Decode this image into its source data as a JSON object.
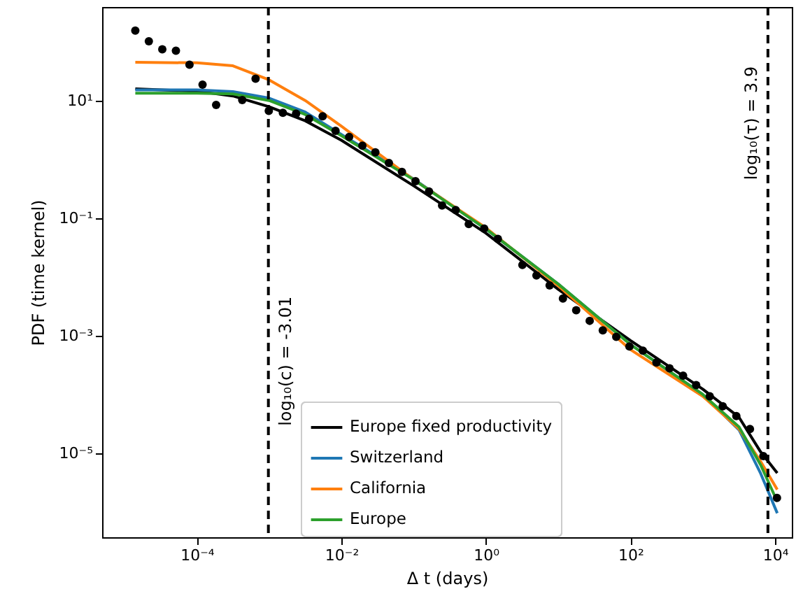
{
  "chart_data": {
    "type": "line",
    "xlabel": "Δ t (days)",
    "ylabel": "PDF (time kernel)",
    "log": "xy",
    "xlim": [
      4.9e-06,
      17000
    ],
    "ylim": [
      3.7e-07,
      400
    ],
    "xticks": [
      {
        "value": 0.0001,
        "label": "10⁻⁴"
      },
      {
        "value": 0.01,
        "label": "10⁻²"
      },
      {
        "value": 1,
        "label": "10⁰"
      },
      {
        "value": 100,
        "label": "10²"
      },
      {
        "value": 10000,
        "label": "10⁴"
      }
    ],
    "yticks": [
      {
        "value": 1e-05,
        "label": "10⁻⁵"
      },
      {
        "value": 0.001,
        "label": "10⁻³"
      },
      {
        "value": 0.1,
        "label": "10⁻¹"
      },
      {
        "value": 10,
        "label": "10¹"
      }
    ],
    "grid": false,
    "legend": "bottom",
    "ref_lines": [
      {
        "axis": "x",
        "value": 0.000977237,
        "color": "#000000",
        "line_style": "dashed"
      },
      {
        "axis": "x",
        "value": 7943.28,
        "color": "#000000",
        "line_style": "dashed"
      }
    ],
    "annotations": [
      {
        "text": "log₁₀(c) = -3.01",
        "x": 0.000977237,
        "y": 0.00037
      },
      {
        "text": "log₁₀(τ) = 3.9",
        "x": 7943.28,
        "y": 4.2
      }
    ],
    "series": [
      {
        "type": "scatter",
        "color": "#000000",
        "marker": "circle",
        "x": [
          1.41e-05,
          2.17e-05,
          3.33e-05,
          5.14e-05,
          7.92e-05,
          0.00012,
          0.000185,
          0.000425,
          0.00065,
          0.00099,
          0.00155,
          0.00236,
          0.00357,
          0.0055,
          0.0083,
          0.0128,
          0.0195,
          0.0295,
          0.0454,
          0.0688,
          0.106,
          0.163,
          0.247,
          0.381,
          0.578,
          0.944,
          1.46,
          3.19,
          4.99,
          7.59,
          11.6,
          17.7,
          27.2,
          41.3,
          63.4,
          96.4,
          148,
          228,
          346,
          533,
          808,
          1245,
          1884,
          2904,
          4480,
          6870,
          10600
        ],
        "values": [
          158,
          104,
          76,
          72,
          41.6,
          19.0,
          8.6,
          10.4,
          24,
          6.8,
          6.3,
          6.1,
          5.0,
          5.5,
          3.1,
          2.44,
          1.73,
          1.34,
          0.88,
          0.62,
          0.43,
          0.288,
          0.166,
          0.139,
          0.08,
          0.067,
          0.0447,
          0.0161,
          0.0107,
          0.0072,
          0.00432,
          0.00273,
          0.0018,
          0.00124,
          0.00096,
          0.00066,
          0.00056,
          0.00035,
          0.00028,
          0.00021,
          0.000145,
          9.3e-05,
          6.3e-05,
          4.3e-05,
          2.58e-05,
          8.9e-06,
          1.73e-06
        ]
      },
      {
        "name": "Europe fixed productivity",
        "color": "#000000",
        "x": [
          1.41e-05,
          0.0001,
          0.000316,
          0.001,
          0.00316,
          0.01,
          0.1,
          1,
          10,
          100,
          1000,
          3162,
          6310,
          10700
        ],
        "values": [
          16.1,
          14.7,
          12.2,
          8.0,
          4.6,
          2.15,
          0.359,
          0.056,
          0.0062,
          0.00083,
          0.000123,
          4.1e-05,
          1.05e-05,
          4.6e-06
        ]
      },
      {
        "name": "Switzerland",
        "color": "#1f77b4",
        "x": [
          1.41e-05,
          0.0001,
          0.000316,
          0.001,
          0.00316,
          0.01,
          0.1,
          1,
          10,
          100,
          1000,
          3162,
          6310,
          10700
        ],
        "values": [
          15.5,
          15.5,
          14.5,
          11.2,
          6.5,
          2.7,
          0.47,
          0.066,
          0.0076,
          0.00071,
          0.0001,
          2.5e-05,
          4.5e-06,
          9.5e-07
        ]
      },
      {
        "name": "California",
        "color": "#ff7f0e",
        "x": [
          1.41e-05,
          0.0001,
          0.000316,
          0.001,
          0.00316,
          0.01,
          0.1,
          1,
          10,
          100,
          1000,
          3162,
          6310,
          10700
        ],
        "values": [
          45.7,
          44.7,
          39.8,
          22.9,
          10.2,
          3.72,
          0.457,
          0.069,
          0.0071,
          0.00058,
          9.3e-05,
          2.6e-05,
          7.2e-06,
          2.4e-06
        ]
      },
      {
        "name": "Europe",
        "color": "#2ca02c",
        "x": [
          1.41e-05,
          0.0001,
          0.000316,
          0.001,
          0.00316,
          0.01,
          0.1,
          1,
          10,
          100,
          1000,
          3162,
          6310,
          10700
        ],
        "values": [
          13.6,
          13.6,
          13.2,
          10.2,
          5.9,
          2.57,
          0.457,
          0.066,
          0.0076,
          0.00071,
          0.0001,
          2.8e-05,
          6.3e-06,
          1.5e-06
        ]
      }
    ]
  }
}
